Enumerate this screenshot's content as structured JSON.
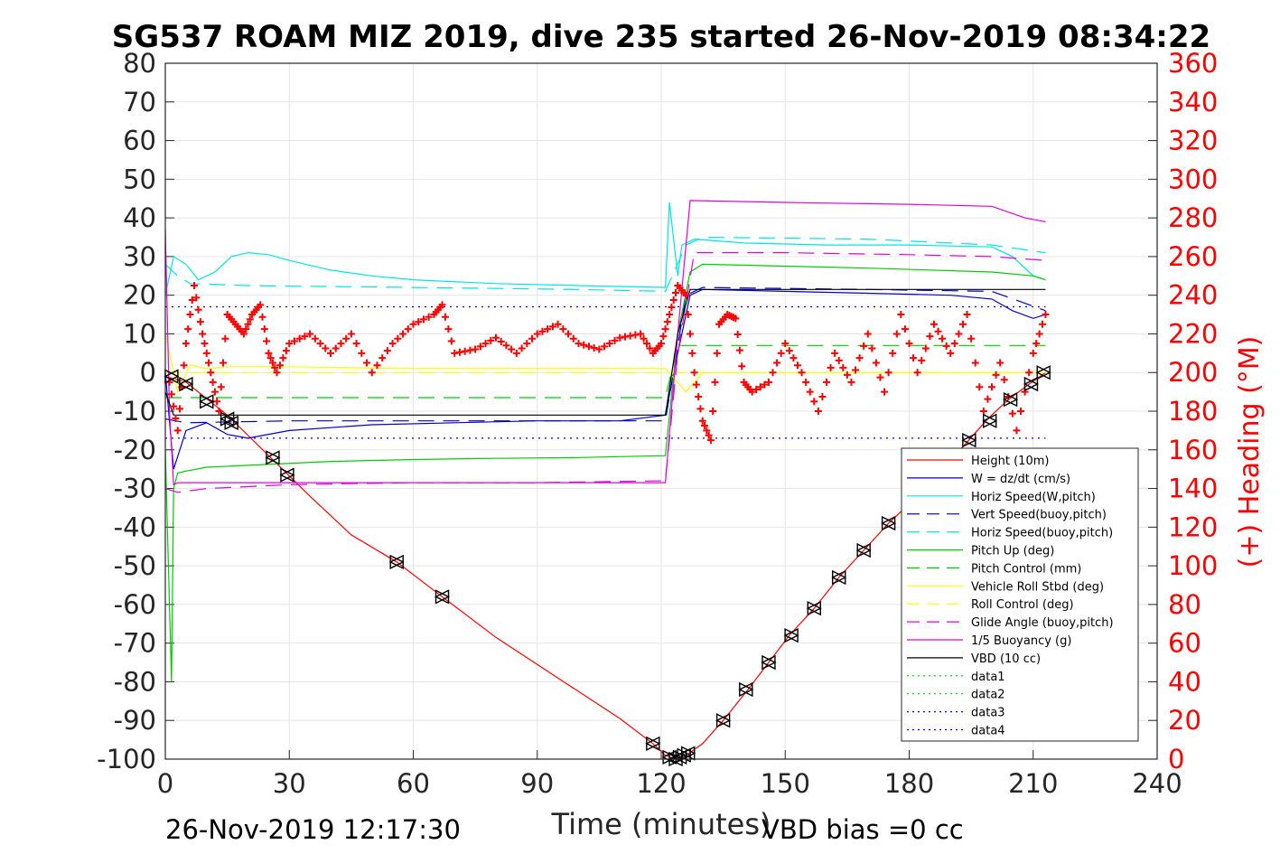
{
  "chart_data": {
    "type": "line",
    "title": "SG537 ROAM MIZ 2019, dive 235 started 26-Nov-2019 08:34:22",
    "xlabel": "Time (minutes)",
    "ylabel_right": "(+) Heading (°M)",
    "xlim": [
      0,
      240
    ],
    "ylim": [
      -100,
      80
    ],
    "ylim_right": [
      0,
      360
    ],
    "x_ticks": [
      "0",
      "30",
      "60",
      "90",
      "120",
      "150",
      "180",
      "210",
      "240"
    ],
    "y_ticks": [
      "80",
      "70",
      "60",
      "50",
      "40",
      "30",
      "20",
      "10",
      "0",
      "-10",
      "-20",
      "-30",
      "-40",
      "-50",
      "-60",
      "-70",
      "-80",
      "-90",
      "-100"
    ],
    "y_ticks_right": [
      "360",
      "340",
      "320",
      "300",
      "280",
      "260",
      "240",
      "220",
      "200",
      "180",
      "160",
      "140",
      "120",
      "100",
      "80",
      "60",
      "40",
      "20",
      "0"
    ],
    "grid": true,
    "legend_position": "lower-right",
    "footer_left": "26-Nov-2019 12:17:30",
    "footer_right": "VBD bias =0 cc",
    "colors": {
      "red": "#ff0000",
      "blue": "#0000cc",
      "cyan": "#00e5e5",
      "green": "#00cc00",
      "yellow": "#ffff00",
      "magenta": "#e000e0",
      "black": "#000000"
    },
    "series": [
      {
        "name": "Height (10m)",
        "color": "#ff0000",
        "style": "solid",
        "x": [
          0,
          5,
          15,
          25,
          35,
          45,
          56,
          67,
          80,
          95,
          110,
          118,
          121,
          123.5,
          126,
          130,
          135,
          141,
          146,
          151,
          157,
          163,
          169,
          175,
          182,
          188,
          194,
          199,
          204,
          209,
          213
        ],
        "y": [
          -1,
          -2.5,
          -11,
          -21.5,
          -32,
          -42,
          -49,
          -58,
          -68.5,
          -79,
          -89.5,
          -96,
          -99,
          -100,
          -99,
          -96,
          -90,
          -82,
          -75,
          -68,
          -61,
          -53,
          -46,
          -39,
          -32,
          -25,
          -18,
          -12,
          -7,
          -3,
          0
        ]
      },
      {
        "name": "W = dz/dt (cm/s)",
        "color": "#0000cc",
        "style": "solid",
        "x": [
          0,
          2,
          5,
          10,
          15,
          20,
          30,
          50,
          70,
          90,
          110,
          121,
          124,
          127,
          130,
          150,
          170,
          190,
          200,
          205,
          210,
          213
        ],
        "y": [
          0,
          -25,
          -15,
          -13,
          -16,
          -17,
          -15,
          -13.5,
          -13,
          -12.5,
          -12.5,
          -11,
          5,
          20,
          21.5,
          21,
          20.5,
          20,
          19,
          16,
          14,
          15
        ]
      },
      {
        "name": "Horiz Speed(W,pitch)",
        "color": "#00e5e5",
        "style": "solid",
        "x": [
          0,
          2,
          5,
          8,
          12,
          16,
          20,
          25,
          30,
          40,
          50,
          60,
          80,
          100,
          121,
          122,
          124,
          125,
          128,
          140,
          160,
          180,
          200,
          205,
          210,
          213
        ],
        "y": [
          20,
          30,
          28,
          24,
          26,
          30,
          31,
          30.5,
          29,
          26.5,
          25,
          24,
          23,
          22.5,
          22,
          44,
          25,
          33,
          34.5,
          33.5,
          33,
          33,
          32.5,
          30,
          25,
          24
        ]
      },
      {
        "name": "Vert Speed(buoy,pitch)",
        "color": "#0000cc",
        "style": "dashed",
        "x": [
          0,
          5,
          30,
          60,
          90,
          121,
          126,
          130,
          170,
          200,
          213
        ],
        "y": [
          -12,
          -13,
          -12.5,
          -12.5,
          -12.5,
          -12.5,
          20,
          22,
          21.5,
          21,
          16
        ]
      },
      {
        "name": "Horiz Speed(buoy,pitch)",
        "color": "#00e5e5",
        "style": "dashed",
        "x": [
          0,
          3,
          6,
          20,
          60,
          100,
          121,
          126,
          130,
          170,
          200,
          213
        ],
        "y": [
          28,
          25,
          23,
          22.5,
          22,
          21.5,
          21,
          33,
          35,
          34.5,
          33,
          31
        ]
      },
      {
        "name": "Pitch Up (deg)",
        "color": "#00cc00",
        "style": "solid",
        "x": [
          0,
          1.5,
          2,
          3,
          5,
          10,
          20,
          40,
          60,
          80,
          100,
          121,
          124,
          127,
          130,
          170,
          200,
          210,
          213
        ],
        "y": [
          -20,
          -80,
          -30,
          -26,
          -25.5,
          -24.5,
          -24,
          -23,
          -22.5,
          -22.2,
          -22,
          -21.5,
          10,
          26,
          28,
          27,
          26,
          25,
          24
        ]
      },
      {
        "name": "Pitch Control (mm)",
        "color": "#00cc00",
        "style": "dashed",
        "x": [
          0,
          10,
          121,
          124,
          213
        ],
        "y": [
          -6.5,
          -6.5,
          -6.5,
          7,
          7
        ]
      },
      {
        "name": "Vehicle Roll Stbd (deg)",
        "color": "#ffff00",
        "style": "solid",
        "x": [
          0,
          3,
          6,
          10,
          15,
          30,
          60,
          90,
          121,
          126,
          130,
          213
        ],
        "y": [
          10,
          -5,
          2,
          1,
          1.5,
          1.5,
          1,
          1,
          1,
          -5,
          0,
          0
        ]
      },
      {
        "name": "Roll Control (deg)",
        "color": "#ffff00",
        "style": "dashed",
        "x": [
          0,
          121,
          213
        ],
        "y": [
          0,
          0,
          0
        ]
      },
      {
        "name": "Glide Angle (buoy,pitch)",
        "color": "#e000e0",
        "style": "dashed",
        "x": [
          0,
          3,
          10,
          30,
          60,
          90,
          121,
          124,
          128,
          150,
          180,
          200,
          213
        ],
        "y": [
          -30,
          -31,
          -30,
          -29,
          -28.5,
          -28.5,
          -28,
          5,
          31,
          31,
          30.5,
          30,
          29
        ]
      },
      {
        "name": "1/5 Buoyancy (g)",
        "color": "#e000e0",
        "style": "solid",
        "x": [
          0,
          1,
          2,
          3,
          121,
          124,
          127,
          150,
          180,
          200,
          208,
          213
        ],
        "y": [
          37,
          -10,
          -29,
          -28.5,
          -28.5,
          10,
          44.5,
          44,
          43.5,
          43,
          40,
          39
        ]
      },
      {
        "name": "VBD (10 cc)",
        "color": "#000000",
        "style": "solid",
        "x": [
          0,
          2,
          4,
          121,
          124,
          127,
          213
        ],
        "y": [
          -5,
          -11,
          -11,
          -11,
          10,
          21.5,
          21.5
        ]
      },
      {
        "name": "data1",
        "color": "#00cc00",
        "style": "dotted",
        "x": [],
        "y": []
      },
      {
        "name": "data2",
        "color": "#00cc00",
        "style": "dotted",
        "x": [],
        "y": []
      },
      {
        "name": "data3",
        "color": "#0000cc",
        "style": "dotted",
        "x": [
          0,
          213
        ],
        "y": [
          17,
          17
        ]
      },
      {
        "name": "data4",
        "color": "#0000cc",
        "style": "dotted",
        "x": [
          0,
          213
        ],
        "y": [
          -17,
          -17
        ]
      }
    ],
    "heading_series": {
      "axis": "right",
      "color": "#ff0000",
      "marker": "+",
      "x": [
        1,
        3,
        5,
        7,
        9,
        11,
        13,
        15,
        17,
        19,
        21,
        23,
        25,
        27,
        30,
        35,
        40,
        45,
        50,
        55,
        60,
        65,
        67,
        70,
        75,
        80,
        85,
        90,
        95,
        100,
        105,
        110,
        115,
        118,
        120,
        122,
        124,
        126,
        128,
        130,
        132,
        134,
        136,
        138,
        140,
        142,
        146,
        150,
        154,
        158,
        162,
        166,
        170,
        174,
        178,
        182,
        186,
        190,
        194,
        198,
        202,
        206,
        210,
        213
      ],
      "y": [
        195,
        170,
        215,
        245,
        220,
        200,
        180,
        230,
        225,
        220,
        230,
        235,
        210,
        200,
        215,
        220,
        210,
        220,
        200,
        215,
        225,
        230,
        235,
        210,
        212,
        218,
        210,
        220,
        225,
        215,
        212,
        218,
        220,
        210,
        215,
        230,
        245,
        240,
        200,
        175,
        165,
        225,
        230,
        228,
        195,
        190,
        195,
        215,
        200,
        180,
        210,
        195,
        220,
        190,
        230,
        200,
        225,
        210,
        230,
        180,
        205,
        170,
        210,
        230
      ]
    },
    "markers": {
      "style": "triangle-pairs",
      "color": "#000000",
      "x": [
        1.5,
        5,
        10,
        15,
        16,
        26,
        29.5,
        56,
        67,
        118,
        122,
        123.5,
        124.5,
        125.5,
        126.5,
        135,
        140.5,
        146,
        151.5,
        157,
        163,
        169,
        175,
        194.5,
        199.5,
        204.5,
        209.5,
        212.5
      ],
      "y": [
        -1,
        -3,
        -7.5,
        -12,
        -13,
        -22,
        -26.5,
        -49,
        -58,
        -96,
        -99.5,
        -100,
        -99.5,
        -99,
        -98.5,
        -90,
        -82,
        -75,
        -68,
        -61,
        -53,
        -46,
        -39,
        -17.5,
        -12.5,
        -7,
        -3,
        0
      ]
    }
  }
}
